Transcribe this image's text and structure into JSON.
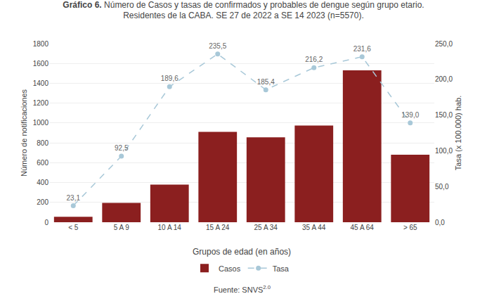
{
  "chart_data": {
    "type": "bar",
    "title": "Gráfico 6. Número de Casos y tasas de confirmados y probables de dengue según grupo etario.",
    "subtitle": "Residentes de la CABA. SE 27 de 2022 a SE 14 2023 (n=5570).",
    "xlabel": "Grupos de edad (en años)",
    "ylabel": "Número de notificaciones",
    "y2label": "Tasa (x 100.000) hab.",
    "categories": [
      "< 5",
      "5 A 9",
      "10 A 14",
      "15 A 24",
      "25 A 34",
      "35 A 44",
      "45 A 64",
      "> 65"
    ],
    "series": [
      {
        "name": "Casos",
        "type": "bar",
        "color": "#8B1F1F",
        "values": [
          55,
          195,
          380,
          910,
          855,
          975,
          1530,
          680
        ]
      },
      {
        "name": "Tasa",
        "type": "line",
        "axis": "y2",
        "color": "#a8c8d8",
        "line_style": "dashed",
        "marker": "circle",
        "data_labels": true,
        "values": [
          23.1,
          92.5,
          189.6,
          235.5,
          185.4,
          216.2,
          231.6,
          139.0
        ],
        "value_labels": [
          "23,1",
          "92,5",
          "189,6",
          "235,5",
          "185,4",
          "216,2",
          "231,6",
          "139,0"
        ]
      }
    ],
    "ylim": [
      0,
      1800
    ],
    "yticks": [
      0,
      200,
      400,
      600,
      800,
      1000,
      1200,
      1400,
      1600,
      1800
    ],
    "y2lim": [
      0,
      250
    ],
    "y2ticks": [
      {
        "value": 0.0,
        "label": "0,0"
      },
      {
        "value": 50.0,
        "label": "50,0"
      },
      {
        "value": 100.0,
        "label": "100,0"
      },
      {
        "value": 150.0,
        "label": "150,0"
      },
      {
        "value": 200.0,
        "label": "200,0"
      },
      {
        "value": 250.0,
        "label": "250,0"
      }
    ],
    "grid": true,
    "legend": "bottom",
    "annotations": [
      {
        "text": "Fuente: SNVS",
        "superscript": "2.0"
      }
    ]
  }
}
